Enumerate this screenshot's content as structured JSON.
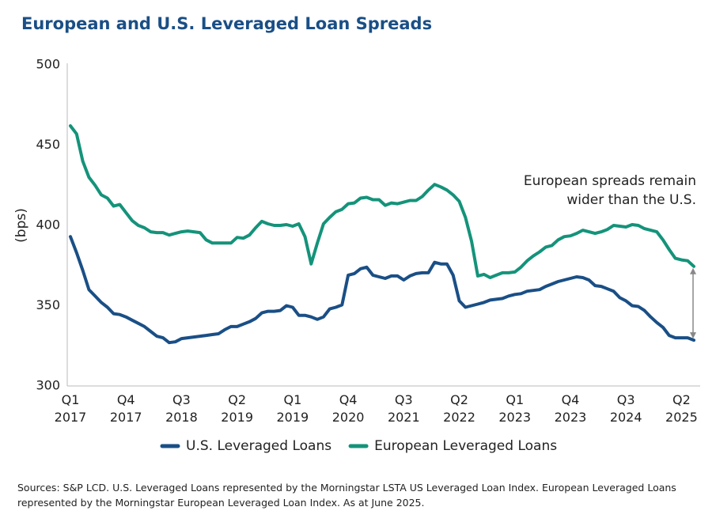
{
  "chart_data": {
    "type": "line",
    "title": "European and U.S. Leveraged Loan Spreads",
    "y_label": "(bps)",
    "annotation": [
      "European spreads remain",
      "wider than the U.S."
    ],
    "source": "Sources: S&P LCD. U.S. Leveraged Loans represented by the Morningstar LSTA US Leveraged Loan Index. European Leveraged Loans represented by the Morningstar European Leveraged Loan Index. As at June 2025.",
    "ylim": [
      300,
      500
    ],
    "yticks": [
      300,
      350,
      400,
      450,
      500
    ],
    "grid": false,
    "categories": [
      "Q1 2017",
      null,
      null,
      null,
      null,
      null,
      null,
      null,
      null,
      "Q4 2017",
      null,
      null,
      null,
      null,
      null,
      null,
      null,
      null,
      "Q3 2018",
      null,
      null,
      null,
      null,
      null,
      null,
      null,
      null,
      "Q2 2019",
      null,
      null,
      null,
      null,
      null,
      null,
      null,
      null,
      "Q1 2019",
      null,
      null,
      null,
      null,
      null,
      null,
      null,
      null,
      "Q4 2020",
      null,
      null,
      null,
      null,
      null,
      null,
      null,
      null,
      "Q3 2021",
      null,
      null,
      null,
      null,
      null,
      null,
      null,
      null,
      "Q2 2022",
      null,
      null,
      null,
      null,
      null,
      null,
      null,
      null,
      "Q1 2023",
      null,
      null,
      null,
      null,
      null,
      null,
      null,
      null,
      "Q4 2023",
      null,
      null,
      null,
      null,
      null,
      null,
      null,
      null,
      "Q3 2024",
      null,
      null,
      null,
      null,
      null,
      null,
      null,
      null,
      "Q2 2025",
      null,
      null
    ],
    "series": [
      {
        "name": "U.S. Leveraged Loans",
        "color": "#1a4f86",
        "values": [
          393,
          383,
          372,
          360,
          356,
          352,
          349,
          345,
          344.5,
          343,
          341,
          339,
          337,
          334,
          331,
          330,
          327,
          327.5,
          329.5,
          330,
          330.5,
          331,
          331.5,
          332,
          332.5,
          335,
          337,
          337,
          338.5,
          340,
          342,
          345.5,
          346.5,
          346.5,
          347,
          350,
          349,
          344,
          344,
          343,
          341.5,
          343,
          348,
          349,
          350.5,
          369,
          370,
          373,
          374,
          369,
          368,
          367,
          368.5,
          368.5,
          366,
          368.5,
          370,
          370.5,
          370.5,
          377,
          376,
          376,
          369,
          353,
          349,
          350,
          351,
          352,
          353.5,
          354,
          354.5,
          356,
          357,
          357.5,
          359,
          359.5,
          360,
          362,
          363.5,
          365,
          366,
          367,
          368,
          367.5,
          366,
          362.5,
          362,
          360.5,
          359,
          355,
          353,
          350,
          349.5,
          347,
          343,
          339.5,
          336.5,
          331.5,
          330,
          330,
          330,
          328.5
        ]
      },
      {
        "name": "European Leveraged Loans",
        "color": "#14937a",
        "values": [
          462,
          457,
          440,
          430,
          425,
          419,
          417,
          412,
          413,
          408,
          403,
          400,
          398.5,
          396,
          395.5,
          395.5,
          394,
          395,
          396,
          396.5,
          396,
          395.5,
          391,
          389,
          389,
          389,
          389,
          392.5,
          392,
          394,
          398.5,
          402.5,
          401,
          400,
          400,
          400.5,
          399.5,
          401,
          393,
          376,
          389,
          401,
          405,
          408.5,
          410,
          413.5,
          414,
          417,
          417.5,
          416,
          416,
          412.5,
          414,
          413.5,
          414.5,
          415.5,
          415.5,
          418,
          422,
          425.5,
          424,
          422,
          419,
          415,
          405,
          390,
          368.5,
          369.5,
          367.5,
          369,
          370.5,
          370.5,
          371,
          374,
          378,
          381,
          383.5,
          386.5,
          387.5,
          391,
          393,
          393.5,
          395,
          397,
          396,
          395,
          396,
          397.5,
          400,
          399.5,
          399,
          400.5,
          400,
          398,
          397,
          396,
          391,
          385,
          379.5,
          378.5,
          378,
          374.5
        ]
      }
    ],
    "legend": "bottom"
  }
}
